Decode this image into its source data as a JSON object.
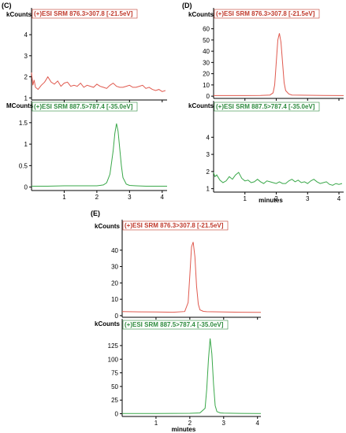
{
  "colors": {
    "red": "#e05a4f",
    "green": "#3aa84a",
    "label_red": "#c0392b",
    "label_green": "#2e8b3e",
    "axis": "#000000"
  },
  "chart_data": [
    {
      "panel": "(C)",
      "type": "line",
      "xlabel": "",
      "xlim": [
        0,
        4.15
      ],
      "xticks": [
        1,
        2,
        3,
        4
      ],
      "plots": [
        {
          "unit": "kCounts",
          "label": "(+)ESI SRM 876.3>307.8 [-21.5eV]",
          "color": "red",
          "ylim": [
            0.9,
            4.6
          ],
          "yticks": [
            1,
            2,
            3,
            4
          ],
          "series": [
            {
              "x": [
                0.0,
                0.04,
                0.08,
                0.12,
                0.2,
                0.3,
                0.4,
                0.5,
                0.6,
                0.7,
                0.8,
                0.9,
                1.0,
                1.1,
                1.2,
                1.3,
                1.4,
                1.5,
                1.6,
                1.7,
                1.8,
                1.9,
                2.0,
                2.1,
                2.2,
                2.3,
                2.4,
                2.5,
                2.6,
                2.7,
                2.8,
                2.9,
                3.0,
                3.1,
                3.2,
                3.3,
                3.4,
                3.5,
                3.6,
                3.7,
                3.8,
                3.9,
                4.0,
                4.1
              ],
              "y": [
                2.2,
                1.6,
                1.85,
                1.5,
                1.4,
                1.6,
                1.75,
                2.0,
                1.75,
                1.65,
                1.8,
                1.55,
                1.7,
                1.75,
                1.55,
                1.6,
                1.55,
                1.7,
                1.5,
                1.6,
                1.55,
                1.5,
                1.65,
                1.55,
                1.5,
                1.45,
                1.6,
                1.7,
                1.55,
                1.5,
                1.5,
                1.55,
                1.6,
                1.5,
                1.5,
                1.55,
                1.6,
                1.45,
                1.5,
                1.4,
                1.35,
                1.4,
                1.3,
                1.35
              ]
            }
          ]
        },
        {
          "unit": "MCounts",
          "label": "(+)ESI SRM 887.5>787.4 [-35.0eV]",
          "color": "green",
          "ylim": [
            -0.08,
            1.68
          ],
          "yticks": [
            0,
            0.5,
            1,
            1.5
          ],
          "series": [
            {
              "x": [
                0.0,
                0.5,
                1.0,
                1.5,
                2.0,
                2.2,
                2.3,
                2.4,
                2.5,
                2.55,
                2.6,
                2.65,
                2.7,
                2.75,
                2.8,
                2.9,
                3.0,
                3.2,
                3.5,
                4.0,
                4.15
              ],
              "y": [
                0.02,
                0.02,
                0.03,
                0.03,
                0.03,
                0.05,
                0.1,
                0.3,
                0.85,
                1.25,
                1.48,
                1.3,
                0.9,
                0.5,
                0.22,
                0.07,
                0.04,
                0.03,
                0.02,
                0.02,
                0.02
              ]
            }
          ]
        }
      ]
    },
    {
      "panel": "(D)",
      "type": "line",
      "xlabel": "minutes",
      "xlim": [
        0,
        4.15
      ],
      "xticks": [
        1,
        2,
        3,
        4
      ],
      "plots": [
        {
          "unit": "kCounts",
          "label": "(+)ESI SRM 876.3>307.8 [-21.5eV]",
          "color": "red",
          "ylim": [
            -2,
            66
          ],
          "yticks": [
            0,
            10,
            20,
            30,
            40,
            50,
            60
          ],
          "series": [
            {
              "x": [
                0.0,
                0.5,
                1.0,
                1.5,
                1.8,
                1.9,
                1.95,
                2.0,
                2.05,
                2.1,
                2.15,
                2.2,
                2.25,
                2.3,
                2.4,
                2.5,
                3.0,
                3.5,
                4.0,
                4.15
              ],
              "y": [
                0.5,
                0.5,
                0.5,
                0.6,
                1,
                3,
                10,
                30,
                50,
                56,
                48,
                30,
                12,
                5,
                2,
                1,
                0.8,
                0.6,
                0.5,
                0.5
              ]
            }
          ]
        },
        {
          "unit": "kCounts",
          "label": "(+)ESI SRM 887.5>787.4 [-35.0eV]",
          "color": "green",
          "ylim": [
            0.8,
            5.3
          ],
          "yticks": [
            1,
            2,
            3,
            4
          ],
          "series": [
            {
              "x": [
                0.0,
                0.04,
                0.1,
                0.2,
                0.3,
                0.4,
                0.5,
                0.6,
                0.7,
                0.8,
                0.9,
                1.0,
                1.1,
                1.2,
                1.3,
                1.4,
                1.5,
                1.6,
                1.7,
                1.8,
                1.9,
                2.0,
                2.1,
                2.2,
                2.3,
                2.4,
                2.5,
                2.6,
                2.7,
                2.8,
                2.9,
                3.0,
                3.1,
                3.2,
                3.3,
                3.4,
                3.5,
                3.6,
                3.7,
                3.8,
                3.9,
                4.0,
                4.1
              ],
              "y": [
                1.95,
                1.7,
                1.8,
                1.5,
                1.35,
                1.45,
                1.7,
                1.55,
                1.8,
                1.95,
                1.6,
                1.45,
                1.5,
                1.35,
                1.4,
                1.55,
                1.4,
                1.3,
                1.45,
                1.4,
                1.35,
                1.3,
                1.4,
                1.3,
                1.3,
                1.45,
                1.55,
                1.4,
                1.5,
                1.35,
                1.4,
                1.3,
                1.45,
                1.55,
                1.4,
                1.3,
                1.35,
                1.4,
                1.25,
                1.2,
                1.3,
                1.25,
                1.3
              ]
            }
          ]
        }
      ]
    },
    {
      "panel": "(E)",
      "type": "line",
      "xlabel": "minutes",
      "xlim": [
        0,
        4.1
      ],
      "xticks": [
        1,
        2,
        3,
        4
      ],
      "plots": [
        {
          "unit": "kCounts",
          "label": "(+)ESI SRM 876.3>307.8 [-21.5eV]",
          "color": "red",
          "ylim": [
            -1,
            50
          ],
          "yticks": [
            0,
            10,
            20,
            30,
            40
          ],
          "series": [
            {
              "x": [
                0.0,
                0.5,
                1.0,
                1.5,
                1.85,
                1.95,
                2.0,
                2.05,
                2.1,
                2.15,
                2.2,
                2.25,
                2.3,
                2.4,
                2.5,
                3.0,
                3.5,
                4.0,
                4.1
              ],
              "y": [
                2.5,
                2.3,
                2.2,
                2.1,
                2.5,
                8,
                25,
                42,
                45,
                36,
                18,
                7,
                3.5,
                2.6,
                2.4,
                2.2,
                2.1,
                2.0,
                2.0
              ]
            }
          ]
        },
        {
          "unit": "kCounts",
          "label": "(+)ESI SRM 887.5>787.4 [-35.0eV]",
          "color": "green",
          "ylim": [
            -5,
            148
          ],
          "yticks": [
            0,
            25,
            50,
            75,
            100,
            125
          ],
          "series": [
            {
              "x": [
                0.0,
                0.5,
                1.0,
                1.5,
                2.0,
                2.3,
                2.45,
                2.5,
                2.55,
                2.6,
                2.65,
                2.7,
                2.75,
                2.8,
                2.9,
                3.0,
                3.5,
                4.0,
                4.1
              ],
              "y": [
                0.5,
                0.5,
                0.5,
                0.6,
                0.8,
                1.5,
                10,
                45,
                100,
                138,
                110,
                55,
                15,
                4,
                1.5,
                1,
                0.6,
                0.5,
                0.5
              ]
            }
          ]
        }
      ]
    }
  ]
}
